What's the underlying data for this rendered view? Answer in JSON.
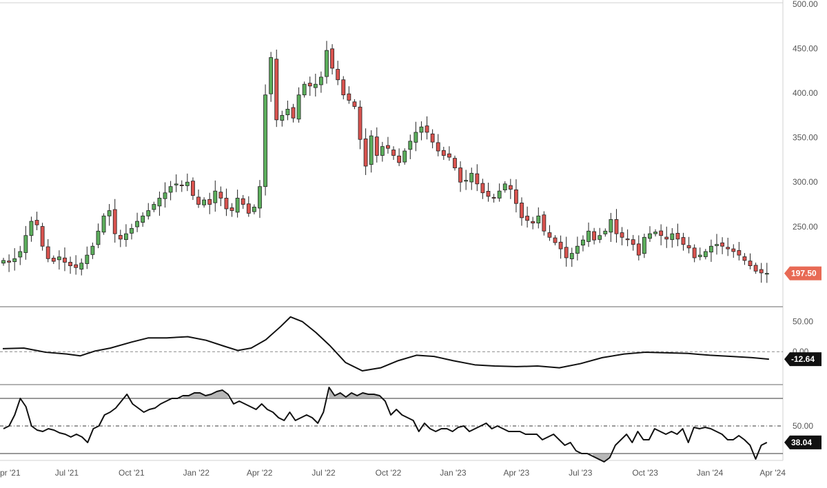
{
  "chart_data": [
    {
      "type": "candlestick",
      "title": "",
      "y_ticks": [
        "500.00",
        "450.00",
        "400.00",
        "350.00",
        "300.00",
        "250.00"
      ],
      "ylim": [
        160,
        500
      ],
      "last_price": "197.50",
      "bar_interval": "weekly",
      "colors": {
        "up": "#5cae5c",
        "down": "#d9534f",
        "last_tag": "#e86a55"
      },
      "x_labels": [
        "Apr '21",
        "Jul '21",
        "Oct '21",
        "Jan '22",
        "Apr '22",
        "Jul '22",
        "Oct '22",
        "Jan '23",
        "Apr '23",
        "Jul '23",
        "Oct '23",
        "Jan '24",
        "Apr '24"
      ],
      "x_dates": [
        "2021-04-01",
        "2021-07-01",
        "2021-10-01",
        "2022-01-01",
        "2022-04-01",
        "2022-07-01",
        "2022-10-01",
        "2023-01-01",
        "2023-04-01",
        "2023-07-01",
        "2023-10-01",
        "2024-01-01",
        "2024-04-01"
      ],
      "close_series": [
        212,
        210,
        214,
        222,
        240,
        256,
        252,
        228,
        214,
        211,
        216,
        210,
        206,
        204,
        209,
        218,
        228,
        245,
        262,
        268,
        242,
        236,
        242,
        248,
        256,
        262,
        268,
        275,
        282,
        288,
        295,
        298,
        296,
        300,
        285,
        275,
        280,
        275,
        290,
        282,
        270,
        268,
        282,
        275,
        265,
        272,
        295,
        398,
        440,
        370,
        375,
        382,
        372,
        398,
        410,
        408,
        410,
        418,
        448,
        428,
        415,
        398,
        392,
        385,
        348,
        318,
        352,
        330,
        340,
        338,
        330,
        322,
        335,
        346,
        356,
        362,
        356,
        345,
        335,
        330,
        328,
        316,
        300,
        302,
        310,
        298,
        288,
        284,
        282,
        290,
        298,
        292,
        276,
        260,
        257,
        254,
        262,
        245,
        238,
        232,
        225,
        215,
        220,
        228,
        235,
        245,
        235,
        240,
        245,
        258,
        242,
        238,
        236,
        230,
        218,
        238,
        242,
        244,
        240,
        236,
        242,
        236,
        230,
        226,
        215,
        218,
        222,
        228,
        230,
        228,
        225,
        222,
        218,
        212,
        206,
        200,
        198,
        197.5
      ],
      "indicators": [
        {
          "name": "",
          "y_ticks": [
            "50.00",
            "0.00"
          ],
          "ylim": [
            -55,
            75
          ],
          "last_value": "-12.64",
          "zero_line": "dashed",
          "series": [
            {
              "x": "2021-04-01",
              "y": 5
            },
            {
              "x": "2021-05-01",
              "y": 6
            },
            {
              "x": "2021-06-01",
              "y": -1
            },
            {
              "x": "2021-07-01",
              "y": -4
            },
            {
              "x": "2021-07-20",
              "y": -7
            },
            {
              "x": "2021-08-10",
              "y": 1
            },
            {
              "x": "2021-09-01",
              "y": 6
            },
            {
              "x": "2021-10-01",
              "y": 16
            },
            {
              "x": "2021-10-25",
              "y": 23
            },
            {
              "x": "2021-11-20",
              "y": 23
            },
            {
              "x": "2021-12-20",
              "y": 25
            },
            {
              "x": "2022-01-15",
              "y": 19
            },
            {
              "x": "2022-02-10",
              "y": 9
            },
            {
              "x": "2022-03-01",
              "y": 2
            },
            {
              "x": "2022-03-20",
              "y": 6
            },
            {
              "x": "2022-04-10",
              "y": 20
            },
            {
              "x": "2022-05-01",
              "y": 42
            },
            {
              "x": "2022-05-15",
              "y": 58
            },
            {
              "x": "2022-06-01",
              "y": 50
            },
            {
              "x": "2022-06-20",
              "y": 32
            },
            {
              "x": "2022-07-10",
              "y": 10
            },
            {
              "x": "2022-08-01",
              "y": -18
            },
            {
              "x": "2022-08-25",
              "y": -32
            },
            {
              "x": "2022-09-20",
              "y": -27
            },
            {
              "x": "2022-10-15",
              "y": -15
            },
            {
              "x": "2022-11-10",
              "y": -6
            },
            {
              "x": "2022-12-05",
              "y": -8
            },
            {
              "x": "2023-01-01",
              "y": -15
            },
            {
              "x": "2023-02-01",
              "y": -22
            },
            {
              "x": "2023-03-01",
              "y": -24
            },
            {
              "x": "2023-04-01",
              "y": -25
            },
            {
              "x": "2023-05-01",
              "y": -24
            },
            {
              "x": "2023-06-01",
              "y": -27
            },
            {
              "x": "2023-07-01",
              "y": -20
            },
            {
              "x": "2023-08-01",
              "y": -10
            },
            {
              "x": "2023-09-01",
              "y": -4
            },
            {
              "x": "2023-10-01",
              "y": -1
            },
            {
              "x": "2023-11-01",
              "y": -2
            },
            {
              "x": "2023-12-01",
              "y": -3
            },
            {
              "x": "2024-01-01",
              "y": -6
            },
            {
              "x": "2024-02-01",
              "y": -8
            },
            {
              "x": "2024-03-01",
              "y": -10
            },
            {
              "x": "2024-03-25",
              "y": -12.64
            }
          ]
        },
        {
          "name": "",
          "y_ticks": [
            "50.00"
          ],
          "ylim": [
            25,
            80
          ],
          "upper_band": 70,
          "mid_line": 50,
          "lower_band": 30,
          "last_value": "38.04",
          "series_values": [
            48,
            50,
            58,
            70,
            64,
            50,
            47,
            46,
            48,
            47,
            45,
            44,
            42,
            44,
            42,
            38,
            48,
            50,
            58,
            60,
            63,
            68,
            73,
            66,
            63,
            60,
            62,
            63,
            66,
            68,
            70,
            70,
            72,
            72,
            74,
            74,
            72,
            73,
            75,
            76,
            73,
            66,
            68,
            66,
            64,
            62,
            66,
            62,
            60,
            56,
            54,
            60,
            54,
            56,
            58,
            56,
            52,
            60,
            78,
            72,
            74,
            71,
            74,
            72,
            74,
            73,
            73,
            72,
            68,
            58,
            62,
            58,
            56,
            54,
            46,
            52,
            48,
            46,
            48,
            48,
            46,
            49,
            50,
            46,
            48,
            50,
            52,
            48,
            50,
            48,
            46,
            46,
            46,
            44,
            44,
            44,
            40,
            42,
            44,
            40,
            36,
            38,
            32,
            30,
            30,
            28,
            26,
            24,
            27,
            36,
            40,
            44,
            38,
            46,
            40,
            40,
            48,
            46,
            44,
            46,
            44,
            48,
            38,
            49,
            48,
            49,
            48,
            46,
            44,
            40,
            40,
            43,
            40,
            36,
            26,
            36,
            38.04
          ],
          "fill_color_over": "#999999"
        }
      ]
    }
  ]
}
